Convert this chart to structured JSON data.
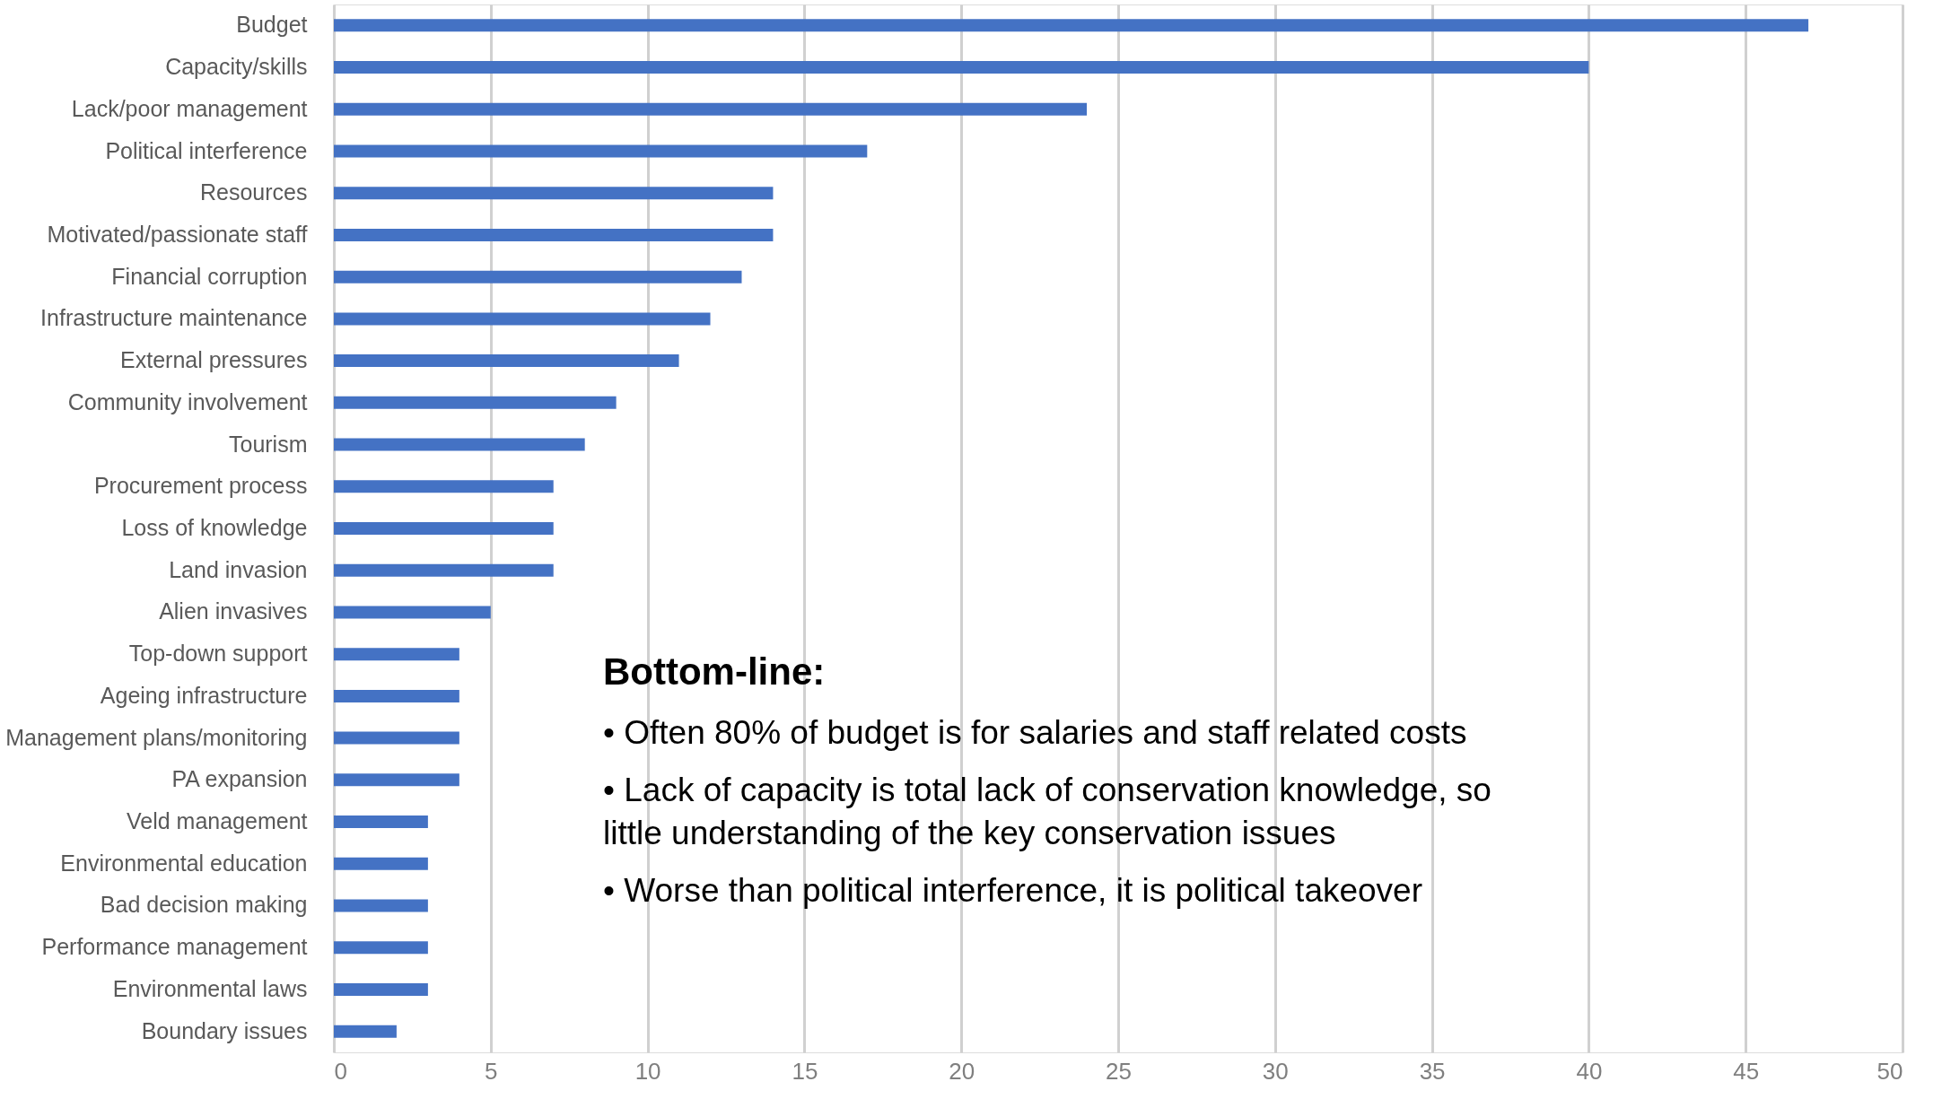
{
  "chart_data": {
    "type": "bar",
    "orientation": "horizontal",
    "categories": [
      "Budget",
      "Capacity/skills",
      "Lack/poor management",
      "Political interference",
      "Resources",
      "Motivated/passionate staff",
      "Financial corruption",
      "Infrastructure maintenance",
      "External pressures",
      "Community involvement",
      "Tourism",
      "Procurement process",
      "Loss of knowledge",
      "Land invasion",
      "Alien invasives",
      "Top-down support",
      "Ageing infrastructure",
      "Management plans/monitoring",
      "PA expansion",
      "Veld management",
      "Environmental education",
      "Bad decision making",
      "Performance management",
      "Environmental laws",
      "Boundary issues"
    ],
    "values": [
      47,
      40,
      24,
      17,
      14,
      14,
      13,
      12,
      11,
      9,
      8,
      7,
      7,
      7,
      5,
      4,
      4,
      4,
      4,
      3,
      3,
      3,
      3,
      3,
      2
    ],
    "color": "#4472c4",
    "xlim": [
      0,
      50
    ],
    "xticks": [
      0,
      5,
      10,
      15,
      20,
      25,
      30,
      35,
      40,
      45,
      50
    ],
    "grid": "x",
    "annotations": [
      "Bottom-line:",
      "• Often 80% of budget is for salaries and staff related costs",
      "• Lack of capacity is total lack of conservation knowledge, so little understanding of the key conservation issues",
      "• Worse than political interference, it is political takeover"
    ]
  }
}
